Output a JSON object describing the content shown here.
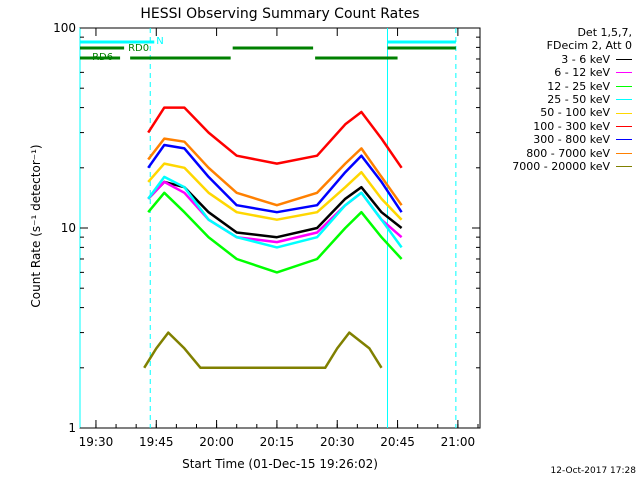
{
  "chart_data": {
    "type": "line",
    "title": "HESSI Observing Summary Count Rates",
    "xlabel": "Start Time (01-Dec-15 19:26:02)",
    "ylabel": "Count Rate (s⁻¹ detector⁻¹)",
    "y_scale": "log",
    "ylim": [
      1,
      100
    ],
    "y_ticks": [
      "1",
      "10",
      "100"
    ],
    "x_ticks": [
      "19:30",
      "19:45",
      "20:00",
      "20:15",
      "20:30",
      "20:45",
      "21:00"
    ],
    "xlim": [
      "19:26:02",
      "21:05:30"
    ],
    "legend_header": [
      "Det 1,5,7,",
      "FDecim 2, Att 0"
    ],
    "legend_position": "right",
    "series": [
      {
        "name": "3 - 6 keV",
        "color": "#000000",
        "values": [
          [
            "19:43",
            14
          ],
          [
            "19:47",
            17
          ],
          [
            "19:52",
            16
          ],
          [
            "19:58",
            12
          ],
          [
            "20:05",
            9.5
          ],
          [
            "20:15",
            9
          ],
          [
            "20:25",
            10
          ],
          [
            "20:32",
            14
          ],
          [
            "20:36",
            16
          ],
          [
            "20:41",
            12
          ],
          [
            "20:46",
            10
          ]
        ]
      },
      {
        "name": "6 - 12 keV",
        "color": "#ff00ff",
        "values": [
          [
            "19:43",
            14
          ],
          [
            "19:47",
            17
          ],
          [
            "19:52",
            15
          ],
          [
            "19:58",
            11
          ],
          [
            "20:05",
            9
          ],
          [
            "20:15",
            8.5
          ],
          [
            "20:25",
            9.5
          ],
          [
            "20:32",
            13
          ],
          [
            "20:36",
            15
          ],
          [
            "20:41",
            11
          ],
          [
            "20:46",
            9
          ]
        ]
      },
      {
        "name": "12 - 25 keV",
        "color": "#00ff00",
        "values": [
          [
            "19:43",
            12
          ],
          [
            "19:47",
            15
          ],
          [
            "19:52",
            12
          ],
          [
            "19:58",
            9
          ],
          [
            "20:05",
            7
          ],
          [
            "20:15",
            6
          ],
          [
            "20:25",
            7
          ],
          [
            "20:32",
            10
          ],
          [
            "20:36",
            12
          ],
          [
            "20:41",
            9
          ],
          [
            "20:46",
            7
          ]
        ]
      },
      {
        "name": "25 - 50 keV",
        "color": "#00ffff",
        "values": [
          [
            "19:43",
            14
          ],
          [
            "19:47",
            18
          ],
          [
            "19:52",
            16
          ],
          [
            "19:58",
            11
          ],
          [
            "20:05",
            9
          ],
          [
            "20:15",
            8
          ],
          [
            "20:25",
            9
          ],
          [
            "20:32",
            13
          ],
          [
            "20:36",
            15
          ],
          [
            "20:41",
            11
          ],
          [
            "20:46",
            8
          ]
        ]
      },
      {
        "name": "50 - 100 keV",
        "color": "#ffd700",
        "values": [
          [
            "19:43",
            17
          ],
          [
            "19:47",
            21
          ],
          [
            "19:52",
            20
          ],
          [
            "19:58",
            15
          ],
          [
            "20:05",
            12
          ],
          [
            "20:15",
            11
          ],
          [
            "20:25",
            12
          ],
          [
            "20:32",
            16
          ],
          [
            "20:36",
            19
          ],
          [
            "20:41",
            14
          ],
          [
            "20:46",
            11
          ]
        ]
      },
      {
        "name": "100 - 300 keV",
        "color": "#ff0000",
        "values": [
          [
            "19:43",
            30
          ],
          [
            "19:47",
            40
          ],
          [
            "19:52",
            40
          ],
          [
            "19:58",
            30
          ],
          [
            "20:05",
            23
          ],
          [
            "20:15",
            21
          ],
          [
            "20:25",
            23
          ],
          [
            "20:32",
            33
          ],
          [
            "20:36",
            38
          ],
          [
            "20:41",
            28
          ],
          [
            "20:46",
            20
          ]
        ]
      },
      {
        "name": "300 - 800 keV",
        "color": "#0000ff",
        "values": [
          [
            "19:43",
            20
          ],
          [
            "19:47",
            26
          ],
          [
            "19:52",
            25
          ],
          [
            "19:58",
            18
          ],
          [
            "20:05",
            13
          ],
          [
            "20:15",
            12
          ],
          [
            "20:25",
            13
          ],
          [
            "20:32",
            19
          ],
          [
            "20:36",
            23
          ],
          [
            "20:41",
            17
          ],
          [
            "20:46",
            12
          ]
        ]
      },
      {
        "name": "800 - 7000 keV",
        "color": "#ff8000",
        "values": [
          [
            "19:43",
            22
          ],
          [
            "19:47",
            28
          ],
          [
            "19:52",
            27
          ],
          [
            "19:58",
            20
          ],
          [
            "20:05",
            15
          ],
          [
            "20:15",
            13
          ],
          [
            "20:25",
            15
          ],
          [
            "20:32",
            21
          ],
          [
            "20:36",
            25
          ],
          [
            "20:41",
            18
          ],
          [
            "20:46",
            13
          ]
        ]
      },
      {
        "name": "7000 - 20000 keV",
        "color": "#808000",
        "values": [
          [
            "19:42",
            2
          ],
          [
            "19:45",
            2.5
          ],
          [
            "19:48",
            3
          ],
          [
            "19:52",
            2.5
          ],
          [
            "19:56",
            2
          ],
          [
            "20:27",
            2
          ],
          [
            "20:30",
            2.5
          ],
          [
            "20:33",
            3
          ],
          [
            "20:38",
            2.5
          ],
          [
            "20:41",
            2
          ]
        ]
      }
    ],
    "flags": [
      {
        "name": "N",
        "color": "#00ffff",
        "segments": [
          [
            "19:26:02",
            "19:44:30"
          ],
          [
            "20:42:30",
            "20:59:30"
          ]
        ]
      },
      {
        "name": "RD0",
        "color": "#008000",
        "segments": [
          [
            "19:26:02",
            "19:37:00"
          ],
          [
            "20:04:00",
            "20:24:00"
          ],
          [
            "20:42:30",
            "20:59:30"
          ]
        ]
      },
      {
        "name": "RD6",
        "color": "#008000",
        "segments": [
          [
            "19:26:02",
            "19:36:00"
          ],
          [
            "19:38:30",
            "20:03:30"
          ],
          [
            "20:24:30",
            "20:45:00"
          ]
        ]
      }
    ],
    "markers": [
      {
        "time": "19:26:02",
        "style": "solid",
        "color": "#00ffff"
      },
      {
        "time": "19:43:30",
        "style": "dashed",
        "color": "#00ffff"
      },
      {
        "time": "20:42:30",
        "style": "solid",
        "color": "#00ffff"
      },
      {
        "time": "20:59:30",
        "style": "dashed",
        "color": "#00ffff"
      }
    ]
  },
  "footer": {
    "date": "12-Oct-2017 17:28"
  }
}
